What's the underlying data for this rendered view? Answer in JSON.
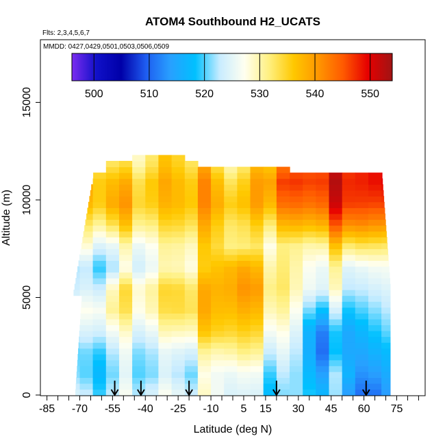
{
  "chart_data": {
    "type": "heatmap",
    "title": "ATOM4 Southbound H2_UCATS",
    "flights_note": "Flts: 2,3,4,5,6,7",
    "dates_note": "MMDD: 0427,0429,0501,0503,0506,0509",
    "xlabel": "Latitude (deg N)",
    "ylabel": "Altitude (m)",
    "xlim": [
      -88,
      88
    ],
    "ylim": [
      0,
      17500
    ],
    "x_tick_labels": [
      "-85",
      "-70",
      "-55",
      "-40",
      "-25",
      "-10",
      "5",
      "15",
      "30",
      "45",
      "60",
      "75"
    ],
    "x_tick_values": [
      -85,
      -70,
      -55,
      -40,
      -25,
      -10,
      5,
      15,
      30,
      45,
      60,
      75
    ],
    "x_minor_tick_values": [
      -80,
      -75,
      -65,
      -60,
      -50,
      -45,
      -35,
      -30,
      -20,
      -15,
      -5,
      0,
      10,
      20,
      25,
      35,
      40,
      50,
      55,
      65,
      70,
      80,
      85
    ],
    "y_tick_labels": [
      "0",
      "5000",
      "10000",
      "15000"
    ],
    "y_tick_values": [
      0,
      5000,
      10000,
      15000
    ],
    "colorbar": {
      "range": [
        496,
        554
      ],
      "tick_values": [
        500,
        510,
        520,
        530,
        540,
        550
      ],
      "tick_labels": [
        "500",
        "510",
        "520",
        "530",
        "540",
        "550"
      ],
      "colors": [
        "#7b2cf0",
        "#1010c8",
        "#0000a8",
        "#1e5cf0",
        "#28a0ff",
        "#00c0ff",
        "#c8ecff",
        "#fffff0",
        "#fff080",
        "#ffc800",
        "#ff9600",
        "#ff5a00",
        "#e60000",
        "#a01414"
      ]
    },
    "profile_latitudes": [
      -54,
      -42,
      -20,
      20,
      61
    ],
    "columns": [
      {
        "lat": -70,
        "ymax": 10400,
        "levels": [
          523,
          520,
          519,
          522,
          525,
          522,
          521,
          526,
          530,
          536,
          538,
          535
        ]
      },
      {
        "lat": -64,
        "ymax": 10900,
        "levels": [
          521,
          518,
          520,
          524,
          527,
          524,
          522,
          528,
          533,
          537,
          538,
          536
        ]
      },
      {
        "lat": -58,
        "ymax": 11800,
        "levels": [
          522,
          520,
          522,
          527,
          530,
          526,
          520,
          524,
          532,
          538,
          537,
          533
        ]
      },
      {
        "lat": -52,
        "ymax": 12000,
        "levels": [
          524,
          522,
          523,
          526,
          532,
          533,
          524,
          527,
          535,
          540,
          538,
          532
        ]
      },
      {
        "lat": -46,
        "ymax": 12200,
        "levels": [
          525,
          523,
          524,
          527,
          530,
          531,
          526,
          528,
          534,
          537,
          535,
          530
        ]
      },
      {
        "lat": -40,
        "ymax": 12400,
        "levels": [
          524,
          521,
          522,
          525,
          529,
          530,
          525,
          527,
          532,
          536,
          536,
          532
        ]
      },
      {
        "lat": -34,
        "ymax": 12400,
        "levels": [
          525,
          522,
          523,
          527,
          531,
          532,
          527,
          528,
          532,
          536,
          537,
          534
        ]
      },
      {
        "lat": -28,
        "ymax": 12400,
        "levels": [
          526,
          523,
          524,
          529,
          533,
          534,
          529,
          530,
          534,
          537,
          538,
          536
        ]
      },
      {
        "lat": -22,
        "ymax": 12000,
        "levels": [
          525,
          522,
          525,
          530,
          535,
          535,
          530,
          531,
          535,
          538,
          537,
          534
        ]
      },
      {
        "lat": -16,
        "ymax": 11700,
        "levels": [
          526,
          524,
          527,
          533,
          536,
          535,
          530,
          532,
          536,
          539,
          539,
          536
        ]
      },
      {
        "lat": -10,
        "ymax": 11700,
        "levels": [
          527,
          526,
          529,
          535,
          537,
          538,
          536,
          535,
          537,
          540,
          540,
          536
        ]
      },
      {
        "lat": -4,
        "ymax": 11600,
        "levels": [
          526,
          527,
          531,
          536,
          538,
          539,
          538,
          534,
          535,
          538,
          535,
          530
        ]
      },
      {
        "lat": 2,
        "ymax": 11800,
        "levels": [
          525,
          527,
          532,
          536,
          539,
          541,
          540,
          532,
          533,
          536,
          534,
          530
        ]
      },
      {
        "lat": 8,
        "ymax": 11800,
        "levels": [
          523,
          525,
          530,
          534,
          537,
          540,
          537,
          531,
          533,
          537,
          536,
          532
        ]
      },
      {
        "lat": 14,
        "ymax": 11800,
        "levels": [
          521,
          523,
          527,
          531,
          534,
          536,
          534,
          530,
          534,
          539,
          540,
          537
        ]
      },
      {
        "lat": 20,
        "ymax": 11800,
        "levels": [
          520,
          522,
          525,
          528,
          531,
          533,
          532,
          531,
          536,
          542,
          545,
          540
        ]
      },
      {
        "lat": 26,
        "ymax": 11400,
        "levels": [
          520,
          521,
          523,
          525,
          528,
          530,
          530,
          530,
          537,
          543,
          546,
          542
        ]
      },
      {
        "lat": 32,
        "ymax": 11400,
        "levels": [
          521,
          520,
          520,
          522,
          524,
          527,
          528,
          530,
          537,
          543,
          546,
          544
        ]
      },
      {
        "lat": 38,
        "ymax": 11400,
        "levels": [
          518,
          516,
          513,
          512,
          519,
          526,
          527,
          531,
          539,
          545,
          548,
          546
        ]
      },
      {
        "lat": 44,
        "ymax": 11400,
        "levels": [
          520,
          516,
          512,
          515,
          521,
          527,
          528,
          533,
          541,
          547,
          549,
          547
        ]
      },
      {
        "lat": 50,
        "ymax": 11400,
        "levels": [
          517,
          522,
          518,
          516,
          520,
          525,
          527,
          534,
          543,
          549,
          550,
          548
        ]
      },
      {
        "lat": 56,
        "ymax": 11400,
        "levels": [
          514,
          515,
          516,
          518,
          521,
          524,
          526,
          534,
          543,
          548,
          549,
          548
        ]
      },
      {
        "lat": 62,
        "ymax": 11400,
        "levels": [
          508,
          512,
          515,
          517,
          520,
          523,
          526,
          533,
          541,
          546,
          548,
          548
        ]
      },
      {
        "lat": 68,
        "ymax": 11300,
        "levels": [
          512,
          514,
          516,
          519,
          521,
          523,
          525,
          531,
          539,
          545,
          548,
          548
        ]
      }
    ]
  }
}
